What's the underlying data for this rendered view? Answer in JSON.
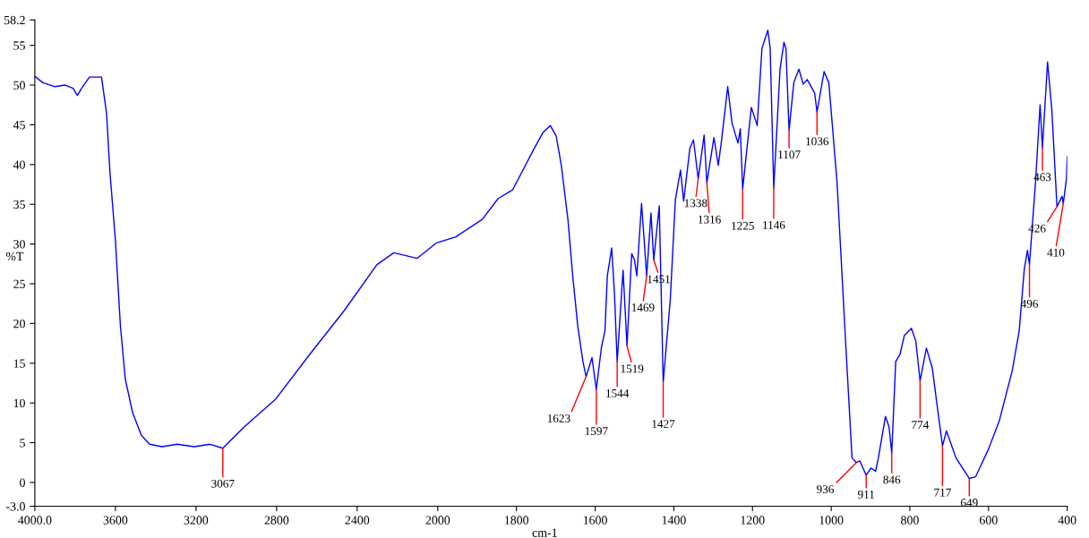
{
  "chart_data": [
    {
      "type": "line",
      "ylabel": "%T",
      "xlim": [
        4000,
        2000
      ],
      "ylim": [
        -3,
        58.2
      ],
      "xticks": [
        {
          "value": 4000,
          "label": "4000.0"
        },
        3600,
        3200,
        2800,
        2400,
        2000
      ],
      "yticks": [
        {
          "value": -3,
          "label": "-3.0"
        },
        0,
        5,
        10,
        15,
        20,
        25,
        30,
        35,
        40,
        45,
        50,
        55,
        58.2
      ],
      "grid": false,
      "legend": false,
      "marker": "none",
      "line_style": "solid",
      "series": [
        {
          "color": "#0000ff",
          "x": [
            4000,
            3960,
            3900,
            3850,
            3810,
            3789,
            3770,
            3729,
            3700,
            3669,
            3644,
            3627,
            3600,
            3575,
            3551,
            3515,
            3471,
            3430,
            3369,
            3293,
            3209,
            3129,
            3067,
            2960,
            2804,
            2636,
            2462,
            2302,
            2218,
            2102,
            2009,
            2000
          ],
          "values": [
            51.1,
            50.3,
            49.8,
            50.0,
            49.6,
            48.7,
            49.5,
            51.0,
            51.0,
            51.0,
            46.4,
            39.0,
            30.4,
            19.6,
            13.0,
            8.8,
            5.9,
            4.8,
            4.5,
            4.8,
            4.5,
            4.8,
            4.3,
            7.0,
            10.5,
            16.1,
            21.7,
            27.4,
            28.9,
            28.2,
            30.1,
            30.2
          ]
        }
      ],
      "annotations": [
        {
          "text": "3067",
          "x": 3067,
          "y": 4.3
        }
      ]
    },
    {
      "type": "line",
      "xlabel": "cm-1",
      "tick_labels": "x",
      "xlim": [
        2000,
        400
      ],
      "ylim": [
        -3,
        58.2
      ],
      "xticks": [
        1800,
        1600,
        1400,
        1200,
        1000,
        800,
        600,
        400
      ],
      "grid": false,
      "legend": false,
      "marker": "none",
      "line_style": "solid",
      "series": [
        {
          "color": "#0000ff",
          "x": [
            2000,
            1954,
            1887,
            1847,
            1810,
            1754,
            1733,
            1714,
            1699,
            1686,
            1669,
            1657,
            1644,
            1631,
            1623,
            1608,
            1597,
            1584,
            1575,
            1569,
            1558,
            1551,
            1544,
            1529,
            1519,
            1507,
            1500,
            1494,
            1482,
            1469,
            1458,
            1451,
            1437,
            1427,
            1409,
            1396,
            1383,
            1375,
            1359,
            1350,
            1338,
            1323,
            1316,
            1298,
            1287,
            1279,
            1263,
            1252,
            1237,
            1231,
            1225,
            1203,
            1188,
            1176,
            1161,
            1155,
            1146,
            1130,
            1120,
            1115,
            1107,
            1095,
            1082,
            1071,
            1061,
            1042,
            1036,
            1018,
            1006,
            985,
            963,
            947,
            936,
            927,
            911,
            899,
            887,
            880,
            862,
            853,
            846,
            836,
            825,
            814,
            796,
            785,
            774,
            758,
            743,
            730,
            717,
            707,
            683,
            649,
            633,
            600,
            573,
            540,
            522,
            509,
            501,
            496,
            480,
            469,
            463,
            450,
            439,
            426,
            413,
            410,
            402,
            400
          ],
          "values": [
            30.2,
            30.9,
            33.1,
            35.7,
            36.8,
            42.1,
            44.0,
            44.9,
            43.6,
            39.9,
            33.0,
            26.0,
            19.6,
            15.2,
            13.3,
            15.7,
            11.7,
            17.0,
            19.1,
            26.0,
            29.5,
            23.9,
            15.2,
            26.7,
            17.2,
            28.8,
            28.0,
            26.0,
            35.1,
            26.0,
            33.9,
            28.0,
            34.8,
            12.6,
            23.0,
            35.6,
            39.3,
            35.4,
            42.1,
            43.1,
            38.2,
            43.7,
            37.7,
            43.4,
            39.9,
            42.9,
            49.8,
            45.2,
            42.7,
            44.5,
            36.9,
            47.2,
            44.9,
            54.6,
            56.9,
            54.6,
            37.0,
            52.0,
            55.4,
            54.6,
            44.3,
            50.3,
            52.0,
            50.1,
            50.7,
            49.0,
            46.6,
            51.7,
            50.3,
            37.7,
            17.4,
            3.1,
            2.5,
            2.7,
            0.9,
            1.8,
            1.4,
            3.1,
            8.3,
            7.0,
            3.7,
            15.2,
            16.1,
            18.5,
            19.4,
            17.8,
            12.8,
            16.9,
            14.4,
            9.4,
            4.6,
            6.5,
            3.1,
            0.5,
            0.7,
            4.2,
            7.7,
            14.0,
            19.1,
            26.9,
            29.2,
            27.4,
            38.2,
            47.5,
            42.1,
            52.9,
            46.8,
            34.7,
            36.0,
            35.1,
            38.2,
            41.0
          ]
        }
      ],
      "annotations": [
        {
          "text": "1623",
          "x": 1623,
          "y": 13.3
        },
        {
          "text": "1597",
          "x": 1597,
          "y": 11.7
        },
        {
          "text": "1544",
          "x": 1544,
          "y": 15.2
        },
        {
          "text": "1519",
          "x": 1519,
          "y": 17.2
        },
        {
          "text": "1469",
          "x": 1469,
          "y": 26.0
        },
        {
          "text": "1451",
          "x": 1451,
          "y": 28.0
        },
        {
          "text": "1427",
          "x": 1427,
          "y": 12.6
        },
        {
          "text": "1338",
          "x": 1338,
          "y": 38.2
        },
        {
          "text": "1316",
          "x": 1316,
          "y": 37.7
        },
        {
          "text": "1225",
          "x": 1225,
          "y": 36.9
        },
        {
          "text": "1146",
          "x": 1146,
          "y": 37.0
        },
        {
          "text": "1107",
          "x": 1107,
          "y": 44.3
        },
        {
          "text": "1036",
          "x": 1036,
          "y": 46.6
        },
        {
          "text": "936",
          "x": 936,
          "y": 2.5
        },
        {
          "text": "911",
          "x": 911,
          "y": 0.9
        },
        {
          "text": "846",
          "x": 846,
          "y": 3.7
        },
        {
          "text": "774",
          "x": 774,
          "y": 12.8
        },
        {
          "text": "717",
          "x": 717,
          "y": 4.6
        },
        {
          "text": "649",
          "x": 649,
          "y": 0.5
        },
        {
          "text": "496",
          "x": 496,
          "y": 27.4
        },
        {
          "text": "463",
          "x": 463,
          "y": 42.1
        },
        {
          "text": "426",
          "x": 426,
          "y": 34.7
        },
        {
          "text": "410",
          "x": 410,
          "y": 35.1
        }
      ]
    }
  ]
}
